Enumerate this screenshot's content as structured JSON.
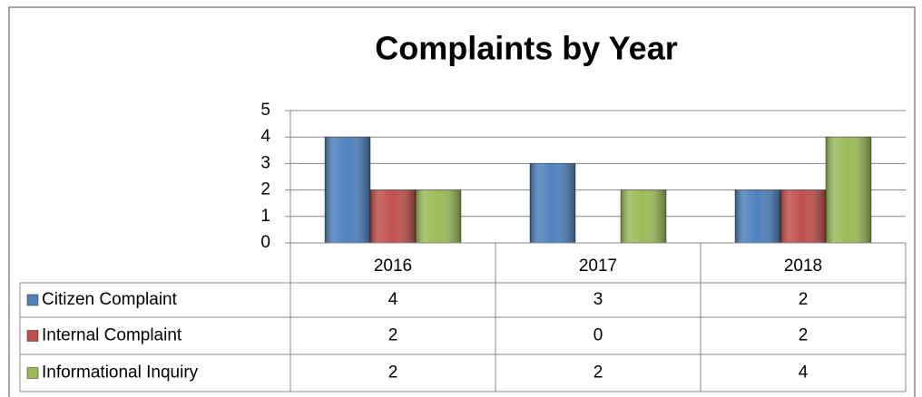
{
  "chart_data": {
    "type": "bar",
    "title": "Complaints by Year",
    "categories": [
      "2016",
      "2017",
      "2018"
    ],
    "series": [
      {
        "name": "Citizen Complaint",
        "color": "#4f81bd",
        "values": [
          4,
          3,
          2
        ]
      },
      {
        "name": "Internal Complaint",
        "color": "#c0504d",
        "values": [
          2,
          0,
          2
        ]
      },
      {
        "name": "Informational Inquiry",
        "color": "#9bbb59",
        "values": [
          2,
          2,
          4
        ]
      }
    ],
    "ylim": [
      0,
      5
    ],
    "yticks": [
      0,
      1,
      2,
      3,
      4,
      5
    ],
    "grid": true,
    "data_table": true
  }
}
